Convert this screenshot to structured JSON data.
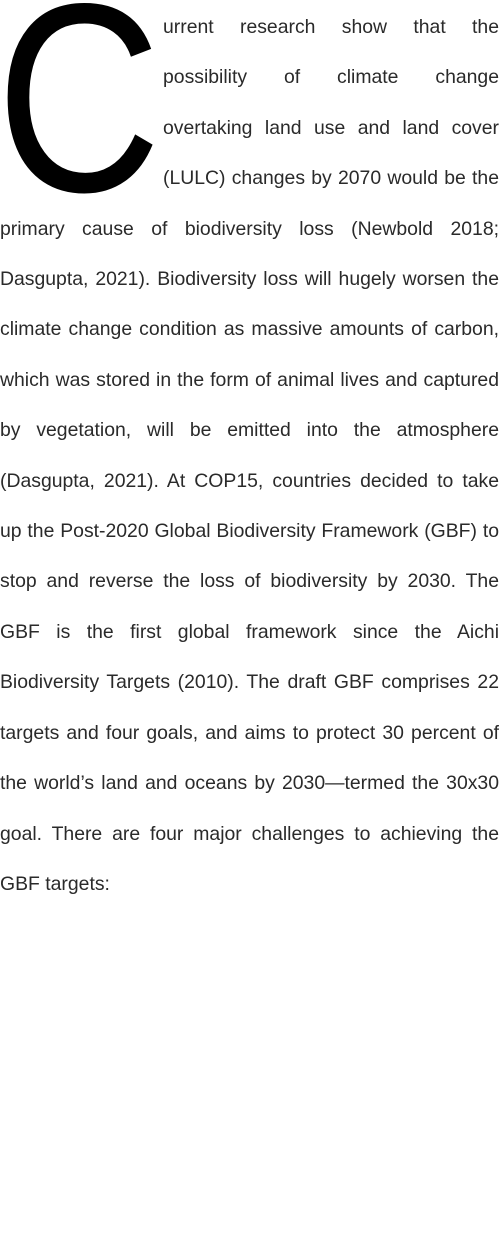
{
  "drop_cap": "C",
  "body": "urrent research show that the possibility of climate change overtaking land use and land cover (LULC) changes by 2070 would be the primary cause of biodiversity loss (Newbold 2018; Dasgupta, 2021). Biodiversity loss will hugely worsen the climate change condition as massive amounts of carbon, which was stored in the form of animal lives and captured by vegetation, will be emitted into the atmosphere (Dasgupta, 2021). At COP15, countries decided to take up the Post-2020 Global Biodiversity Framework (GBF) to stop and reverse the loss of biodiversity by 2030. The GBF is the first global framework since the  Aichi Biodiversity Targets (2010). The draft GBF comprises 22 targets and four goals, and aims to protect 30 percent of the world’s land and oceans by 2030—termed the 30x30 goal. There are four major challenges to achieving the GBF targets:"
}
